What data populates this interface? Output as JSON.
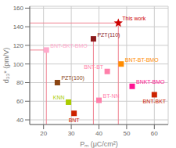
{
  "chart_data": {
    "type": "scatter",
    "xlabel": "Pₘ (μC/cm²)",
    "ylabel": "d₃₃* (pm/V)",
    "xlim": [
      15,
      65
    ],
    "ylim": [
      35,
      162
    ],
    "xticks": [
      20,
      30,
      40,
      50,
      60
    ],
    "yticks": [
      40,
      60,
      80,
      100,
      120,
      140,
      160
    ],
    "grid": true,
    "series": [
      {
        "marker": "star",
        "color": "#cc0000",
        "x": [
          47
        ],
        "values": [
          144
        ],
        "labels": [
          "This work"
        ]
      },
      {
        "marker": "square",
        "colors": [
          "#8B1A1A",
          "#ffaacc",
          "#ff8c00",
          "#ff80aa",
          "#8B4513",
          "#ff1493",
          "#cc2200",
          "#aacc00",
          "#ff80aa",
          "#cc2200"
        ],
        "x": [
          38,
          21,
          48,
          43,
          25,
          52,
          60,
          29,
          40,
          31
        ],
        "values": [
          127,
          115,
          100,
          92,
          80,
          76,
          67,
          59,
          61,
          47
        ],
        "labels": [
          "PZT(110)",
          "BNT-BKT-BMO",
          "BNT-BT-BMO",
          "BNT-BT",
          "PZT(100)",
          "BNKT-BMO",
          "BNT-BKT",
          "KNN",
          "BT-NN",
          "BNT"
        ]
      }
    ],
    "ref_hlines": [
      {
        "y": 144,
        "xmin": 15,
        "xmax": 47,
        "color": "#f08090"
      },
      {
        "y": 115,
        "xmin": 15,
        "xmax": 21,
        "color": "#f08090"
      }
    ],
    "ref_vlines": [
      {
        "x": 47,
        "ymin": 35,
        "ymax": 144,
        "color": "#f08090"
      },
      {
        "x": 38,
        "ymin": 35,
        "ymax": 127,
        "color": "#f08090"
      },
      {
        "x": 21,
        "ymin": 35,
        "ymax": 115,
        "color": "#f08090"
      }
    ]
  }
}
